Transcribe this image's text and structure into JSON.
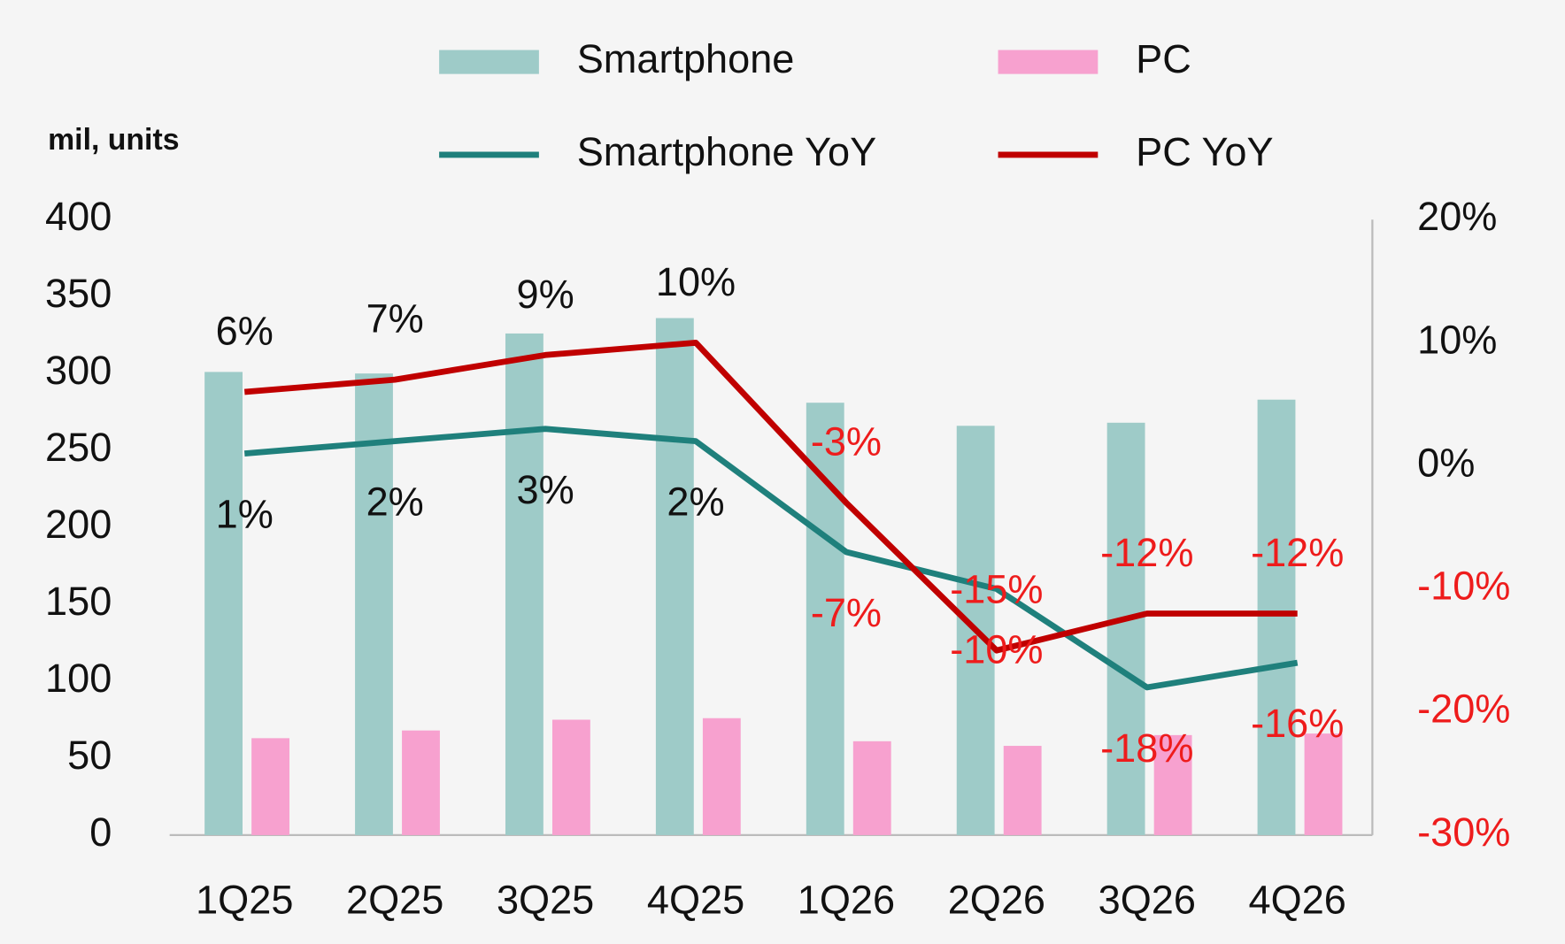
{
  "chart_data": {
    "type": "bar_line",
    "y_axis_label": "mil, units",
    "categories": [
      "1Q25",
      "2Q25",
      "3Q25",
      "4Q25",
      "1Q26",
      "2Q26",
      "3Q26",
      "4Q26"
    ],
    "series": [
      {
        "name": "Smartphone",
        "type": "bar",
        "color": "#9ecbc8",
        "values": [
          301,
          300,
          326,
          336,
          281,
          266,
          268,
          283
        ]
      },
      {
        "name": "PC",
        "type": "bar",
        "color": "#f7a1cf",
        "values": [
          63,
          68,
          75,
          76,
          61,
          58,
          65,
          66
        ]
      },
      {
        "name": "Smartphone YoY",
        "type": "line",
        "axis": "y2",
        "color": "#1f807c",
        "values": [
          1,
          2,
          3,
          2,
          -7,
          -10,
          -18,
          -16
        ],
        "value_labels": [
          "1%",
          "2%",
          "3%",
          "2%",
          "-7%",
          "-10%",
          "-18%",
          "-16%"
        ]
      },
      {
        "name": "PC YoY",
        "type": "line",
        "axis": "y2",
        "color": "#c00000",
        "values": [
          6,
          7,
          9,
          10,
          -3,
          -15,
          -12,
          -12
        ],
        "value_labels": [
          "6%",
          "7%",
          "9%",
          "10%",
          "-3%",
          "-15%",
          "-12%",
          "-12%"
        ]
      }
    ],
    "ylim": [
      0,
      400
    ],
    "yticks": [
      0,
      50,
      100,
      150,
      200,
      250,
      300,
      350,
      400
    ],
    "y2lim": [
      -30,
      20
    ],
    "y2ticks": [
      {
        "value": -30,
        "label": "-30%"
      },
      {
        "value": -20,
        "label": "-20%"
      },
      {
        "value": -10,
        "label": "-10%"
      },
      {
        "value": 0,
        "label": "0%"
      },
      {
        "value": 10,
        "label": "10%"
      },
      {
        "value": 20,
        "label": "20%"
      }
    ],
    "grid": false,
    "legend": "top"
  }
}
